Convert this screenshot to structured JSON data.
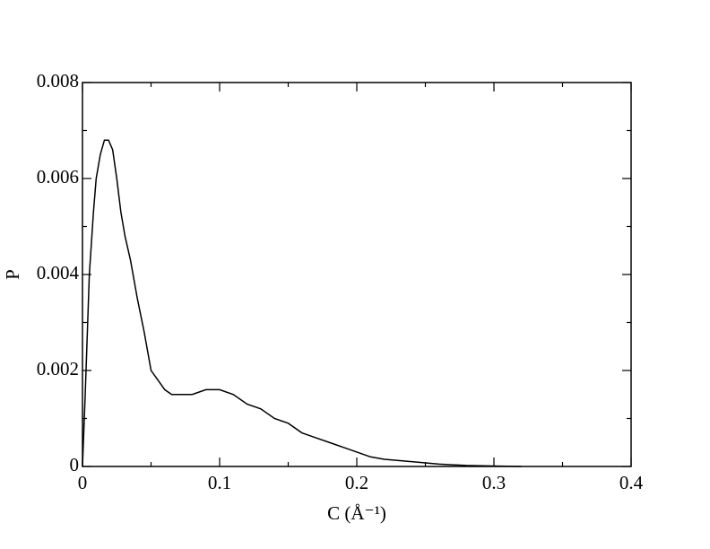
{
  "chart_data": {
    "type": "line",
    "xlabel": "C (Å⁻¹)",
    "ylabel": "P",
    "x": [
      0,
      0.002,
      0.005,
      0.008,
      0.01,
      0.013,
      0.016,
      0.019,
      0.022,
      0.025,
      0.028,
      0.031,
      0.035,
      0.04,
      0.045,
      0.05,
      0.055,
      0.06,
      0.065,
      0.07,
      0.08,
      0.09,
      0.1,
      0.11,
      0.12,
      0.13,
      0.14,
      0.15,
      0.16,
      0.17,
      0.18,
      0.19,
      0.2,
      0.21,
      0.22,
      0.24,
      0.26,
      0.28,
      0.3,
      0.32
    ],
    "series": [
      {
        "name": "P",
        "color": "#000000",
        "values": [
          0,
          0.0015,
          0.004,
          0.0053,
          0.006,
          0.0065,
          0.0068,
          0.0068,
          0.0066,
          0.006,
          0.0053,
          0.0048,
          0.0043,
          0.0035,
          0.0028,
          0.002,
          0.0018,
          0.0016,
          0.0015,
          0.0015,
          0.0015,
          0.0016,
          0.0016,
          0.0015,
          0.0013,
          0.0012,
          0.001,
          0.0009,
          0.0007,
          0.0006,
          0.0005,
          0.0004,
          0.0003,
          0.0002,
          0.00015,
          0.0001,
          5e-05,
          2e-05,
          1e-05,
          0
        ]
      }
    ],
    "xlim": [
      0,
      0.4
    ],
    "ylim": [
      0,
      0.008
    ],
    "xticks": [
      0,
      0.1,
      0.2,
      0.3,
      0.4
    ],
    "yticks": [
      0,
      0.002,
      0.004,
      0.006,
      0.008
    ],
    "xminor_ticks": [
      0.05,
      0.15,
      0.25,
      0.35
    ],
    "yminor_ticks": [
      0.001,
      0.003,
      0.005,
      0.007
    ],
    "grid": false
  }
}
